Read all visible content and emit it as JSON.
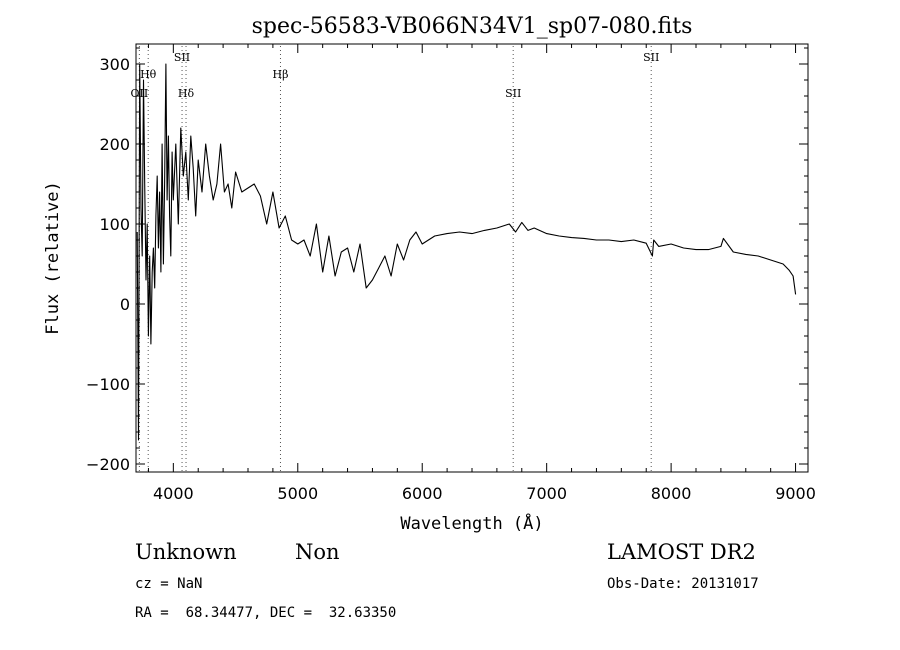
{
  "chart_data": {
    "type": "line",
    "title": "spec-56583-VB066N34V1_sp07-080.fits",
    "xlabel": "Wavelength (Å)",
    "ylabel": "Flux (relative)",
    "xlim": [
      3700,
      9100
    ],
    "ylim": [
      -210,
      325
    ],
    "xticks": [
      4000,
      5000,
      6000,
      7000,
      8000,
      9000
    ],
    "yticks": [
      -200,
      -100,
      0,
      100,
      200,
      300
    ],
    "xtick_labels": [
      "4000",
      "5000",
      "6000",
      "7000",
      "8000",
      "9000"
    ],
    "ytick_labels": [
      "−200",
      "−100",
      "0",
      "100",
      "200",
      "300"
    ],
    "grid": false,
    "line_color": "#000000",
    "series": [
      {
        "x": [
          3710,
          3720,
          3730,
          3740,
          3750,
          3760,
          3770,
          3780,
          3790,
          3800,
          3810,
          3820,
          3830,
          3840,
          3850,
          3860,
          3870,
          3880,
          3890,
          3900,
          3910,
          3920,
          3930,
          3940,
          3950,
          3960,
          3970,
          3980,
          3990,
          4000,
          4020,
          4040,
          4060,
          4080,
          4100,
          4120,
          4140,
          4160,
          4180,
          4200,
          4230,
          4260,
          4290,
          4320,
          4350,
          4380,
          4410,
          4440,
          4470,
          4500,
          4550,
          4600,
          4650,
          4700,
          4750,
          4800,
          4850,
          4900,
          4950,
          5000,
          5050,
          5100,
          5150,
          5200,
          5250,
          5300,
          5350,
          5400,
          5450,
          5500,
          5550,
          5600,
          5650,
          5700,
          5750,
          5800,
          5850,
          5900,
          5950,
          6000,
          6100,
          6200,
          6300,
          6400,
          6500,
          6600,
          6700,
          6750,
          6800,
          6850,
          6900,
          7000,
          7100,
          7200,
          7300,
          7400,
          7500,
          7600,
          7700,
          7800,
          7850,
          7860,
          7900,
          8000,
          8100,
          8200,
          8300,
          8400,
          8420,
          8500,
          8600,
          8700,
          8800,
          8900,
          8950,
          8980,
          9000
        ],
        "y": [
          90,
          -170,
          300,
          120,
          60,
          280,
          150,
          30,
          100,
          -40,
          60,
          -50,
          40,
          70,
          20,
          110,
          160,
          70,
          140,
          40,
          200,
          50,
          150,
          300,
          130,
          210,
          110,
          60,
          190,
          130,
          200,
          100,
          220,
          160,
          190,
          130,
          210,
          170,
          110,
          180,
          140,
          200,
          160,
          130,
          150,
          200,
          140,
          150,
          120,
          165,
          140,
          145,
          150,
          135,
          100,
          140,
          95,
          110,
          80,
          75,
          80,
          60,
          100,
          40,
          85,
          35,
          65,
          70,
          40,
          75,
          20,
          30,
          45,
          60,
          35,
          75,
          55,
          80,
          90,
          75,
          85,
          88,
          90,
          88,
          92,
          95,
          100,
          90,
          102,
          92,
          95,
          88,
          85,
          83,
          82,
          80,
          80,
          78,
          80,
          76,
          60,
          80,
          72,
          75,
          70,
          68,
          68,
          72,
          82,
          65,
          62,
          60,
          55,
          50,
          42,
          35,
          12
        ]
      }
    ],
    "annotations": [
      {
        "label": "OII",
        "x": 3727,
        "pos": "row4"
      },
      {
        "label": "Hθ",
        "x": 3798,
        "pos": "row2"
      },
      {
        "label": "SII",
        "x": 4070,
        "pos": "row1"
      },
      {
        "label": "Hδ",
        "x": 4102,
        "pos": "row4"
      },
      {
        "label": "Hβ",
        "x": 4861,
        "pos": "row2"
      },
      {
        "label": "SII",
        "x": 6731,
        "pos": "row4"
      },
      {
        "label": "SII",
        "x": 7840,
        "pos": "row1"
      }
    ]
  },
  "footer": {
    "object_class": "Unknown",
    "subclass": "Non",
    "survey": "LAMOST DR2",
    "cz": "cz = NaN",
    "obs_date": "Obs-Date: 20131017",
    "coords": "RA =  68.34477, DEC =  32.63350"
  }
}
